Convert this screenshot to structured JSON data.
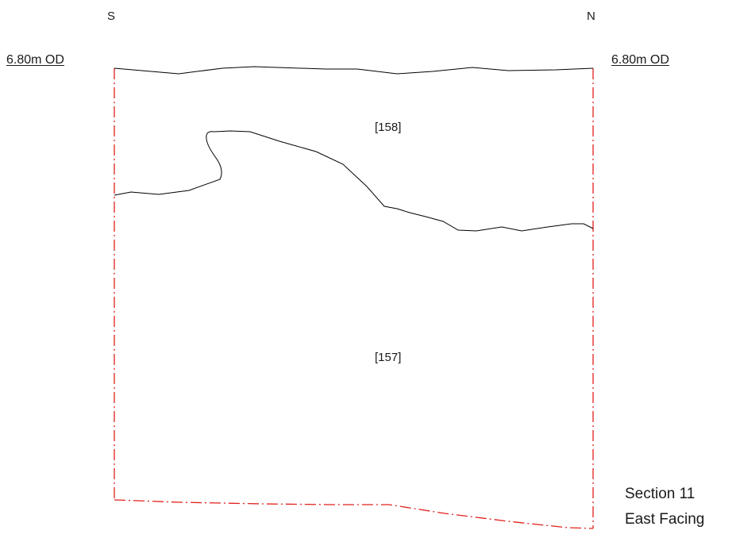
{
  "orientation": {
    "left": "S",
    "right": "N"
  },
  "datum": {
    "left": "6.80m OD",
    "right": "6.80m OD"
  },
  "contexts": {
    "upper": "[158]",
    "lower": "[157]"
  },
  "title": {
    "line1": "Section 11",
    "line2": "East Facing"
  },
  "colors": {
    "limit_of_excavation": "#e0201c",
    "horizon": "#000000",
    "text": "#1a1a1a"
  }
}
